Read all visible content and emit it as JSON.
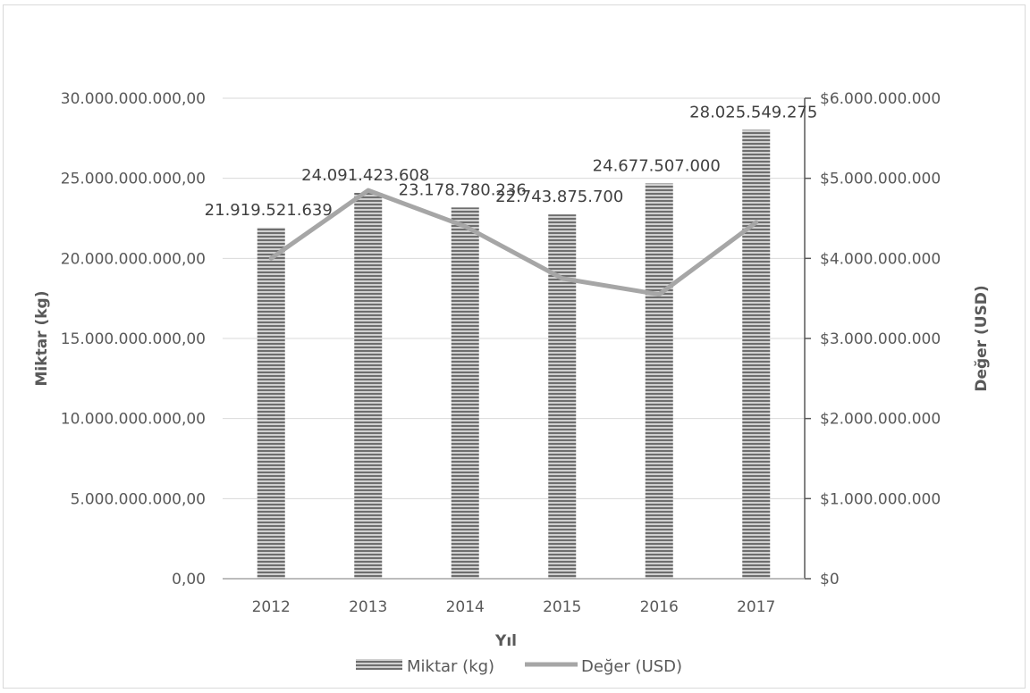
{
  "chart_data": {
    "type": "bar",
    "categories": [
      "2012",
      "2013",
      "2014",
      "2015",
      "2016",
      "2017"
    ],
    "series": [
      {
        "name": "Miktar (kg)",
        "type": "bar",
        "axis": "left",
        "values": [
          21919521639,
          24091423608,
          23178780236,
          22743875700,
          24677507000,
          28025549275
        ],
        "data_labels": [
          "21.919.521.639",
          "24.091.423.608",
          "23.178.780.236",
          "22.743.875.700",
          "24.677.507.000",
          "28.025.549.275"
        ],
        "color": "#7f7f7f"
      },
      {
        "name": "Değer (USD)",
        "type": "line",
        "axis": "right",
        "values": [
          4000000000,
          4850000000,
          4400000000,
          3750000000,
          3550000000,
          4450000000
        ],
        "color": "#a6a6a6"
      }
    ],
    "xlabel": "Yıl",
    "ylabel": "Miktar (kg)",
    "y2label": "Değer (USD)",
    "ylim": [
      0,
      30000000000
    ],
    "y2lim": [
      0,
      6000000000
    ],
    "yticks": [
      0,
      5000000000,
      10000000000,
      15000000000,
      20000000000,
      25000000000,
      30000000000
    ],
    "ytick_labels": [
      "0,00",
      "5.000.000.000,00",
      "10.000.000.000,00",
      "15.000.000.000,00",
      "20.000.000.000,00",
      "25.000.000.000,00",
      "30.000.000.000,00"
    ],
    "y2ticks": [
      0,
      1000000000,
      2000000000,
      3000000000,
      4000000000,
      5000000000,
      6000000000
    ],
    "y2tick_labels": [
      "$0",
      "$1.000.000.000",
      "$2.000.000.000",
      "$3.000.000.000",
      "$4.000.000.000",
      "$5.000.000.000",
      "$6.000.000.000"
    ],
    "grid": true,
    "legend": "bottom"
  }
}
